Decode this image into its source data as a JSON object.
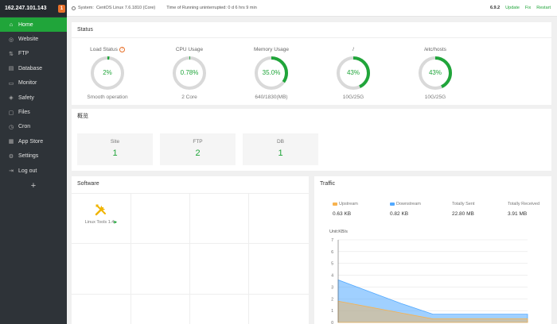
{
  "sidebar": {
    "ip": "162.247.101.143",
    "badge": "1",
    "items": [
      {
        "label": "Home",
        "icon": "home-icon"
      },
      {
        "label": "Website",
        "icon": "globe-icon"
      },
      {
        "label": "FTP",
        "icon": "ftp-icon"
      },
      {
        "label": "Database",
        "icon": "database-icon"
      },
      {
        "label": "Monitor",
        "icon": "monitor-icon"
      },
      {
        "label": "Safety",
        "icon": "shield-icon"
      },
      {
        "label": "Files",
        "icon": "folder-icon"
      },
      {
        "label": "Cron",
        "icon": "clock-icon"
      },
      {
        "label": "App Store",
        "icon": "store-icon"
      },
      {
        "label": "Settings",
        "icon": "gear-icon"
      },
      {
        "label": "Log out",
        "icon": "logout-icon"
      }
    ],
    "add": "+"
  },
  "topbar": {
    "system_label": "System:",
    "system_value": "CentOS Linux 7.6.1810 (Core)",
    "uptime": "Time of Running uninterrupted: 0 d 6 hrs 9 min",
    "version": "6.9.2",
    "update": "Update",
    "fix": "Fix",
    "restart": "Restart"
  },
  "status": {
    "title": "Status",
    "gauges": [
      {
        "label": "Load Status",
        "value": "2%",
        "percent": 2,
        "sub": "Smooth operation",
        "help": "?"
      },
      {
        "label": "CPU Usage",
        "value": "0.78%",
        "percent": 0.78,
        "sub": "2 Core"
      },
      {
        "label": "Memory Usage",
        "value": "35.0%",
        "percent": 35,
        "sub": "640/1830(MB)"
      },
      {
        "label": "/",
        "value": "43%",
        "percent": 43,
        "sub": "10G/25G"
      },
      {
        "label": "/etc/hosts",
        "value": "43%",
        "percent": 43,
        "sub": "10G/25G"
      }
    ]
  },
  "overview": {
    "title": "概览",
    "boxes": [
      {
        "label": "Site",
        "value": "1"
      },
      {
        "label": "FTP",
        "value": "2"
      },
      {
        "label": "DB",
        "value": "1"
      }
    ]
  },
  "software": {
    "title": "Software",
    "item_label": "Linux Tools 1.4",
    "item_icon": "tools-icon"
  },
  "traffic": {
    "title": "Traffic",
    "stats": [
      {
        "label": "Upstream",
        "value": "0.63 KB",
        "color": "#f7b24f"
      },
      {
        "label": "Downstream",
        "value": "0.82 KB",
        "color": "#52a9ff"
      },
      {
        "label": "Totally Sent",
        "value": "22.80 MB"
      },
      {
        "label": "Totally Received",
        "value": "3.91 MB"
      }
    ],
    "unit": "Unit:KB/s"
  },
  "colors": {
    "accent": "#20a53a",
    "sidebar": "#2e3338",
    "badge": "#e8702a"
  },
  "chart_data": {
    "type": "area",
    "ylabel": "Unit:KB/s",
    "ylim": [
      0,
      7
    ],
    "yticks": [
      0,
      1,
      2,
      3,
      4,
      5,
      6,
      7
    ],
    "grid": true,
    "series": [
      {
        "values": [
          3.6,
          2.6,
          1.6,
          0.7,
          0.7,
          0.7,
          0.7
        ],
        "color": "#52a9ff"
      },
      {
        "values": [
          1.8,
          1.3,
          0.8,
          0.3,
          0.3,
          0.3,
          0.3
        ],
        "color": "#f7b24f"
      }
    ]
  }
}
